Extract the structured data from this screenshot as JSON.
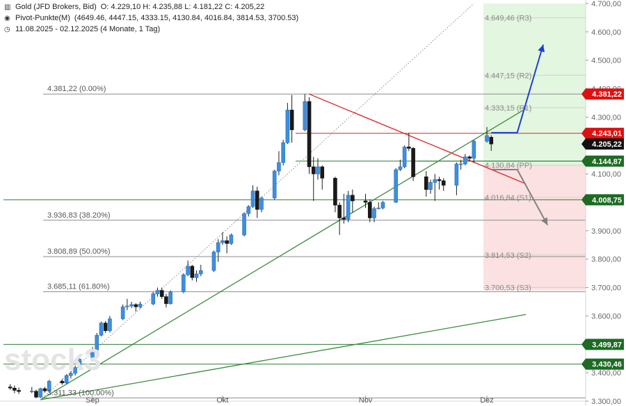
{
  "header": {
    "instrument": "Gold (JFD Brokers, Bid)",
    "ohlc": "O: 4.229,10  H: 4.235,88  L: 4.181,22  C: 4.205,22",
    "pivot_name": "Pivot-Punkte(M)",
    "pivot_values": "(4649.46, 4447.15, 4333.15, 4130.84, 4016.84, 3814.53, 3700.53)",
    "range_text": "11.08.2025 - 02.12.2025  (4 Monate, 1 Tag)"
  },
  "watermark": "stock3",
  "chart_data": {
    "type": "candlestick",
    "title": "Gold (JFD Brokers, Bid)",
    "xlabel": "",
    "ylabel": "",
    "ylim": [
      3300,
      4700
    ],
    "x_ticks": [
      {
        "label": "Sep",
        "date": "2025-09-01"
      },
      {
        "label": "Okt",
        "date": "2025-10-01"
      },
      {
        "label": "Nov",
        "date": "2025-11-03"
      },
      {
        "label": "Dez",
        "date": "2025-12-01"
      }
    ],
    "y_ticks": [
      {
        "value": 3300,
        "label": "3.300,00"
      },
      {
        "value": 3400,
        "label": "3.400,00"
      },
      {
        "value": 3500,
        "label": "3.500,00"
      },
      {
        "value": 3600,
        "label": "3.600,00"
      },
      {
        "value": 3700,
        "label": "3.700,00"
      },
      {
        "value": 3800,
        "label": "3.800,00"
      },
      {
        "value": 3900,
        "label": "3.900,00"
      },
      {
        "value": 4000,
        "label": "4.000,00"
      },
      {
        "value": 4100,
        "label": "4.100,00"
      },
      {
        "value": 4200,
        "label": "4.200,00"
      },
      {
        "value": 4300,
        "label": "4.300,00"
      },
      {
        "value": 4400,
        "label": "4.400,00"
      },
      {
        "value": 4500,
        "label": "4.500,00"
      },
      {
        "value": 4600,
        "label": "4.600,00"
      },
      {
        "value": 4700,
        "label": "4.700,00"
      }
    ],
    "pivots": [
      {
        "label": "4.649,46 (R3)",
        "value": 4649.46
      },
      {
        "label": "4.447,15 (R2)",
        "value": 4447.15
      },
      {
        "label": "4.333,15 (R1)",
        "value": 4333.15
      },
      {
        "label": "4.130,84 (PP)",
        "value": 4130.84
      },
      {
        "label": "4.016,84 (S1)",
        "value": 4016.84
      },
      {
        "label": "3.814,53 (S2)",
        "value": 3814.53
      },
      {
        "label": "3.700,53 (S3)",
        "value": 3700.53
      }
    ],
    "fibonacci": [
      {
        "label": "4.381,22 (0.00%)",
        "value": 4381.22
      },
      {
        "label": "3.936,83 (38.20%)",
        "value": 3936.83
      },
      {
        "label": "3.808,89 (50.00%)",
        "value": 3808.89
      },
      {
        "label": "3.685,11 (61.80%)",
        "value": 3685.11
      },
      {
        "label": "3.311,33 (100.00%)",
        "value": 3311.33
      }
    ],
    "price_markers": [
      {
        "label": "4.381,22",
        "value": 4381.22,
        "color": "#e01010"
      },
      {
        "label": "4.243,01",
        "value": 4243.01,
        "color": "#e01010"
      },
      {
        "label": "4.205,22",
        "value": 4205.22,
        "color": "#111111"
      },
      {
        "label": "4.144,87",
        "value": 4144.87,
        "color": "#1e6b24"
      },
      {
        "label": "4.008,75",
        "value": 4008.75,
        "color": "#1e6b24"
      },
      {
        "label": "3.499,87",
        "value": 3499.87,
        "color": "#1e6b24"
      },
      {
        "label": "3.430,46",
        "value": 3430.46,
        "color": "#1e6b24"
      }
    ],
    "horizontal_lines": [
      {
        "value": 4243.01,
        "color": "#e02020"
      },
      {
        "value": 4144.87,
        "color": "#2e7d32"
      },
      {
        "value": 4008.75,
        "color": "#2e7d32"
      },
      {
        "value": 3499.87,
        "color": "#2e7d32"
      },
      {
        "value": 3430.46,
        "color": "#2e7d32"
      }
    ],
    "trend_lines": [
      {
        "from": {
          "date": "2025-10-21",
          "value": 4381
        },
        "to": {
          "date": "2025-12-10",
          "value": 4065
        },
        "color": "#e02020",
        "style": "solid"
      },
      {
        "from": {
          "date": "2025-08-20",
          "value": 3305
        },
        "to": {
          "date": "2025-12-10",
          "value": 4330
        },
        "color": "#3a8a3a",
        "style": "solid"
      },
      {
        "from": {
          "date": "2025-08-20",
          "value": 3305
        },
        "to": {
          "date": "2025-12-10",
          "value": 3605
        },
        "color": "#3a8a3a",
        "style": "solid"
      },
      {
        "from": {
          "date": "2025-08-20",
          "value": 3305
        },
        "to": {
          "date": "2025-11-28",
          "value": 4700
        },
        "color": "#888888",
        "style": "dotted"
      }
    ],
    "scenario_arrows": [
      {
        "color": "#1a3fd6",
        "points": [
          {
            "date": "2025-12-02",
            "value": 4245
          },
          {
            "date": "2025-12-08",
            "value": 4245
          },
          {
            "date": "2025-12-14",
            "value": 4555
          }
        ]
      },
      {
        "color": "#808080",
        "points": [
          {
            "date": "2025-12-02",
            "value": 4115
          },
          {
            "date": "2025-12-08",
            "value": 4115
          },
          {
            "date": "2025-12-15",
            "value": 3920
          }
        ]
      }
    ],
    "zones": [
      {
        "from": 4130.84,
        "to": 4700,
        "color": "#e3f6e0"
      },
      {
        "from": 3690,
        "to": 4130.84,
        "color": "#fbe1e1"
      }
    ],
    "candles": [
      {
        "date": "2025-08-13",
        "o": 3350,
        "h": 3360,
        "l": 3340,
        "c": 3346
      },
      {
        "date": "2025-08-14",
        "o": 3346,
        "h": 3355,
        "l": 3328,
        "c": 3338
      },
      {
        "date": "2025-08-15",
        "o": 3338,
        "h": 3348,
        "l": 3325,
        "c": 3334
      },
      {
        "date": "2025-08-18",
        "o": 3334,
        "h": 3350,
        "l": 3328,
        "c": 3335
      },
      {
        "date": "2025-08-19",
        "o": 3335,
        "h": 3340,
        "l": 3310,
        "c": 3314
      },
      {
        "date": "2025-08-20",
        "o": 3314,
        "h": 3347,
        "l": 3311,
        "c": 3344
      },
      {
        "date": "2025-08-21",
        "o": 3344,
        "h": 3350,
        "l": 3330,
        "c": 3336
      },
      {
        "date": "2025-08-22",
        "o": 3336,
        "h": 3375,
        "l": 3330,
        "c": 3370
      },
      {
        "date": "2025-08-25",
        "o": 3370,
        "h": 3378,
        "l": 3358,
        "c": 3364
      },
      {
        "date": "2025-08-26",
        "o": 3364,
        "h": 3395,
        "l": 3360,
        "c": 3390
      },
      {
        "date": "2025-08-27",
        "o": 3390,
        "h": 3405,
        "l": 3380,
        "c": 3398
      },
      {
        "date": "2025-08-28",
        "o": 3398,
        "h": 3425,
        "l": 3390,
        "c": 3418
      },
      {
        "date": "2025-08-29",
        "o": 3418,
        "h": 3455,
        "l": 3410,
        "c": 3448
      },
      {
        "date": "2025-09-01",
        "o": 3448,
        "h": 3490,
        "l": 3440,
        "c": 3480
      },
      {
        "date": "2025-09-02",
        "o": 3480,
        "h": 3540,
        "l": 3474,
        "c": 3532
      },
      {
        "date": "2025-09-03",
        "o": 3532,
        "h": 3580,
        "l": 3528,
        "c": 3575
      },
      {
        "date": "2025-09-04",
        "o": 3575,
        "h": 3582,
        "l": 3540,
        "c": 3548
      },
      {
        "date": "2025-09-05",
        "o": 3548,
        "h": 3600,
        "l": 3542,
        "c": 3590
      },
      {
        "date": "2025-09-08",
        "o": 3590,
        "h": 3640,
        "l": 3585,
        "c": 3632
      },
      {
        "date": "2025-09-09",
        "o": 3632,
        "h": 3660,
        "l": 3620,
        "c": 3635
      },
      {
        "date": "2025-09-10",
        "o": 3635,
        "h": 3650,
        "l": 3628,
        "c": 3640
      },
      {
        "date": "2025-09-11",
        "o": 3640,
        "h": 3645,
        "l": 3615,
        "c": 3632
      },
      {
        "date": "2025-09-12",
        "o": 3632,
        "h": 3650,
        "l": 3626,
        "c": 3642
      },
      {
        "date": "2025-09-15",
        "o": 3642,
        "h": 3685,
        "l": 3638,
        "c": 3678
      },
      {
        "date": "2025-09-16",
        "o": 3678,
        "h": 3700,
        "l": 3668,
        "c": 3690
      },
      {
        "date": "2025-09-17",
        "o": 3690,
        "h": 3700,
        "l": 3660,
        "c": 3668
      },
      {
        "date": "2025-09-18",
        "o": 3668,
        "h": 3678,
        "l": 3630,
        "c": 3643
      },
      {
        "date": "2025-09-19",
        "o": 3643,
        "h": 3690,
        "l": 3640,
        "c": 3685
      },
      {
        "date": "2025-09-22",
        "o": 3685,
        "h": 3750,
        "l": 3680,
        "c": 3745
      },
      {
        "date": "2025-09-23",
        "o": 3745,
        "h": 3795,
        "l": 3740,
        "c": 3775
      },
      {
        "date": "2025-09-24",
        "o": 3775,
        "h": 3780,
        "l": 3725,
        "c": 3735
      },
      {
        "date": "2025-09-25",
        "o": 3735,
        "h": 3760,
        "l": 3720,
        "c": 3748
      },
      {
        "date": "2025-09-26",
        "o": 3748,
        "h": 3780,
        "l": 3740,
        "c": 3760
      },
      {
        "date": "2025-09-29",
        "o": 3760,
        "h": 3830,
        "l": 3755,
        "c": 3825
      },
      {
        "date": "2025-09-30",
        "o": 3825,
        "h": 3870,
        "l": 3790,
        "c": 3858
      },
      {
        "date": "2025-10-01",
        "o": 3858,
        "h": 3895,
        "l": 3850,
        "c": 3865
      },
      {
        "date": "2025-10-02",
        "o": 3865,
        "h": 3880,
        "l": 3820,
        "c": 3855
      },
      {
        "date": "2025-10-03",
        "o": 3855,
        "h": 3890,
        "l": 3850,
        "c": 3885
      },
      {
        "date": "2025-10-06",
        "o": 3885,
        "h": 3965,
        "l": 3880,
        "c": 3960
      },
      {
        "date": "2025-10-07",
        "o": 3960,
        "h": 3990,
        "l": 3950,
        "c": 3985
      },
      {
        "date": "2025-10-08",
        "o": 3985,
        "h": 4060,
        "l": 3980,
        "c": 4040
      },
      {
        "date": "2025-10-09",
        "o": 4040,
        "h": 4055,
        "l": 3945,
        "c": 3975
      },
      {
        "date": "2025-10-10",
        "o": 3975,
        "h": 4020,
        "l": 3965,
        "c": 4015
      },
      {
        "date": "2025-10-13",
        "o": 4015,
        "h": 4115,
        "l": 4010,
        "c": 4110
      },
      {
        "date": "2025-10-14",
        "o": 4110,
        "h": 4180,
        "l": 4095,
        "c": 4140
      },
      {
        "date": "2025-10-15",
        "o": 4140,
        "h": 4220,
        "l": 4130,
        "c": 4210
      },
      {
        "date": "2025-10-16",
        "o": 4210,
        "h": 4350,
        "l": 4205,
        "c": 4325
      },
      {
        "date": "2025-10-17",
        "o": 4325,
        "h": 4378,
        "l": 4210,
        "c": 4255
      },
      {
        "date": "2025-10-20",
        "o": 4255,
        "h": 4381,
        "l": 4250,
        "c": 4355
      },
      {
        "date": "2025-10-21",
        "o": 4355,
        "h": 4370,
        "l": 4100,
        "c": 4125
      },
      {
        "date": "2025-10-22",
        "o": 4125,
        "h": 4160,
        "l": 4005,
        "c": 4100
      },
      {
        "date": "2025-10-23",
        "o": 4100,
        "h": 4155,
        "l": 4080,
        "c": 4125
      },
      {
        "date": "2025-10-24",
        "o": 4125,
        "h": 4130,
        "l": 4045,
        "c": 4085
      },
      {
        "date": "2025-10-27",
        "o": 4085,
        "h": 4090,
        "l": 3965,
        "c": 3990
      },
      {
        "date": "2025-10-28",
        "o": 3990,
        "h": 4000,
        "l": 3885,
        "c": 3945
      },
      {
        "date": "2025-10-29",
        "o": 3945,
        "h": 4030,
        "l": 3925,
        "c": 3940
      },
      {
        "date": "2025-10-30",
        "o": 3940,
        "h": 4040,
        "l": 3930,
        "c": 4025
      },
      {
        "date": "2025-10-31",
        "o": 4025,
        "h": 4045,
        "l": 3965,
        "c": 4005
      },
      {
        "date": "2025-11-03",
        "o": 4005,
        "h": 4030,
        "l": 3980,
        "c": 4000
      },
      {
        "date": "2025-11-04",
        "o": 4000,
        "h": 4010,
        "l": 3930,
        "c": 3945
      },
      {
        "date": "2025-11-05",
        "o": 3945,
        "h": 3985,
        "l": 3930,
        "c": 3978
      },
      {
        "date": "2025-11-06",
        "o": 3978,
        "h": 4000,
        "l": 3975,
        "c": 3980
      },
      {
        "date": "2025-11-07",
        "o": 3980,
        "h": 4005,
        "l": 3975,
        "c": 4000
      },
      {
        "date": "2025-11-10",
        "o": 4000,
        "h": 4120,
        "l": 3998,
        "c": 4115
      },
      {
        "date": "2025-11-11",
        "o": 4115,
        "h": 4150,
        "l": 4110,
        "c": 4125
      },
      {
        "date": "2025-11-12",
        "o": 4125,
        "h": 4200,
        "l": 4120,
        "c": 4195
      },
      {
        "date": "2025-11-13",
        "o": 4195,
        "h": 4245,
        "l": 4180,
        "c": 4190
      },
      {
        "date": "2025-11-14",
        "o": 4190,
        "h": 4195,
        "l": 4075,
        "c": 4090
      },
      {
        "date": "2025-11-17",
        "o": 4090,
        "h": 4110,
        "l": 4020,
        "c": 4045
      },
      {
        "date": "2025-11-18",
        "o": 4045,
        "h": 4080,
        "l": 4030,
        "c": 4070
      },
      {
        "date": "2025-11-19",
        "o": 4070,
        "h": 4100,
        "l": 4005,
        "c": 4080
      },
      {
        "date": "2025-11-20",
        "o": 4080,
        "h": 4090,
        "l": 4045,
        "c": 4076
      },
      {
        "date": "2025-11-21",
        "o": 4076,
        "h": 4085,
        "l": 4040,
        "c": 4060
      },
      {
        "date": "2025-11-24",
        "o": 4060,
        "h": 4140,
        "l": 4025,
        "c": 4135
      },
      {
        "date": "2025-11-25",
        "o": 4135,
        "h": 4150,
        "l": 4115,
        "c": 4135
      },
      {
        "date": "2025-11-26",
        "o": 4135,
        "h": 4170,
        "l": 4130,
        "c": 4160
      },
      {
        "date": "2025-11-27",
        "o": 4160,
        "h": 4165,
        "l": 4145,
        "c": 4155
      },
      {
        "date": "2025-11-28",
        "o": 4155,
        "h": 4220,
        "l": 4140,
        "c": 4215
      },
      {
        "date": "2025-12-01",
        "o": 4215,
        "h": 4265,
        "l": 4210,
        "c": 4235
      },
      {
        "date": "2025-12-02",
        "o": 4229.1,
        "h": 4235.88,
        "l": 4181.22,
        "c": 4205.22
      }
    ],
    "colors": {
      "up": "#3d8fe0",
      "down": "#1a1a1a",
      "wick": "#1a1a1a"
    }
  }
}
